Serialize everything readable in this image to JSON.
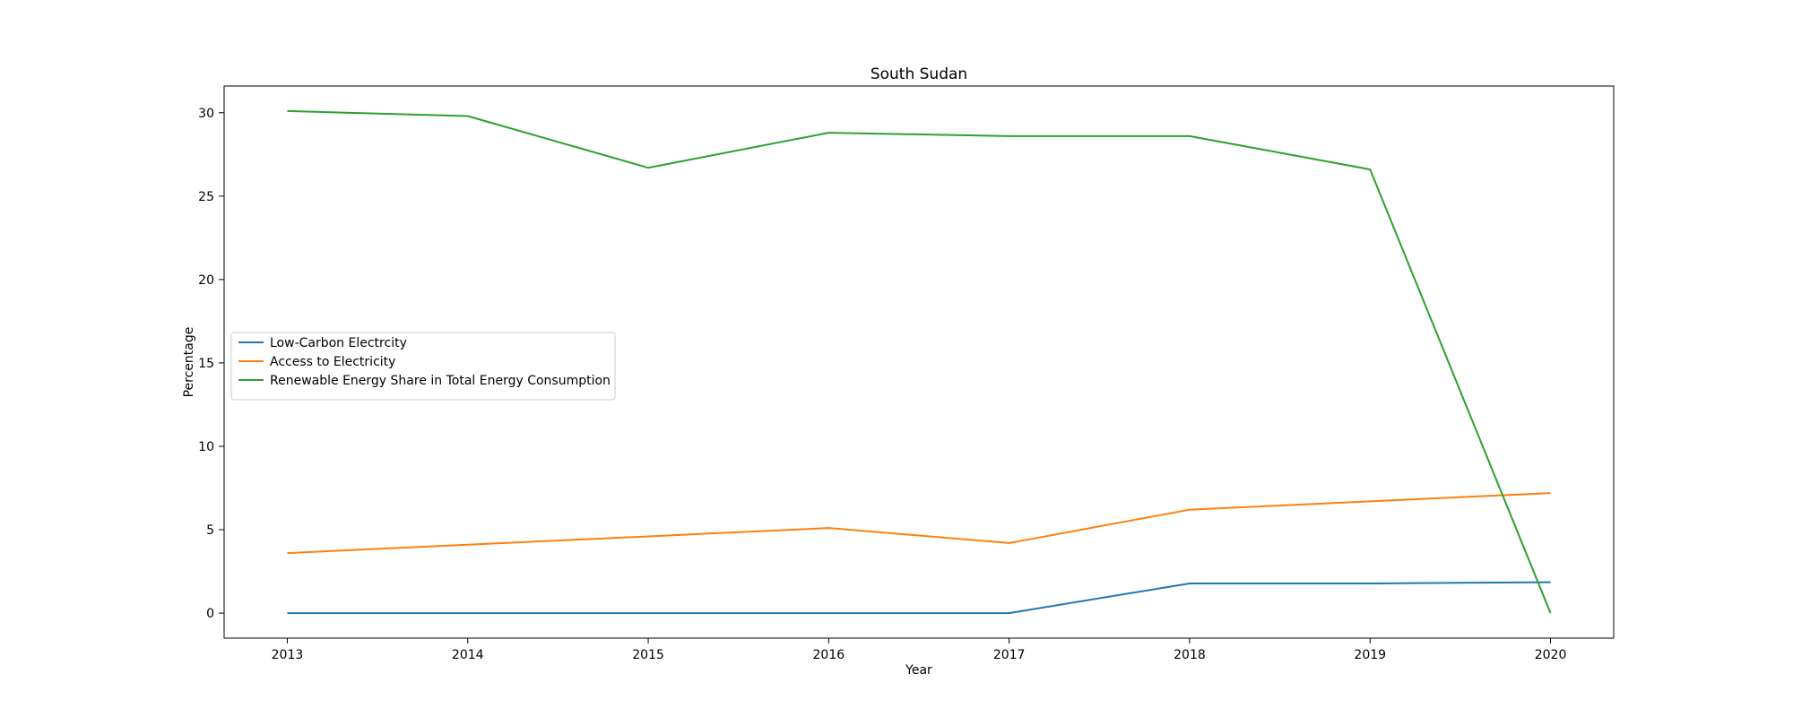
{
  "chart_data": {
    "type": "line",
    "title": "South Sudan",
    "xlabel": "Year",
    "ylabel": "Percentage",
    "x": [
      2013,
      2014,
      2015,
      2016,
      2017,
      2018,
      2019,
      2020
    ],
    "xticks": [
      "2013",
      "2014",
      "2015",
      "2016",
      "2017",
      "2018",
      "2019",
      "2020"
    ],
    "xlim": [
      2012.65,
      2020.35
    ],
    "ylim": [
      -1.5,
      31.6
    ],
    "yticks": [
      0,
      5,
      10,
      15,
      20,
      25,
      30
    ],
    "grid": false,
    "legend_position": "center-left",
    "series": [
      {
        "name": "Low-Carbon Electrcity",
        "color": "#1f77b4",
        "values": [
          0,
          0,
          0,
          0,
          0,
          1.78,
          1.78,
          1.85
        ]
      },
      {
        "name": "Access to Electricity",
        "color": "#ff7f0e",
        "values": [
          3.6,
          4.1,
          4.6,
          5.1,
          4.2,
          6.2,
          6.7,
          7.2
        ]
      },
      {
        "name": "Renewable Energy Share in Total Energy Consumption",
        "color": "#2ca02c",
        "values": [
          30.1,
          29.8,
          26.7,
          28.8,
          28.6,
          28.6,
          26.6,
          0
        ]
      }
    ]
  }
}
